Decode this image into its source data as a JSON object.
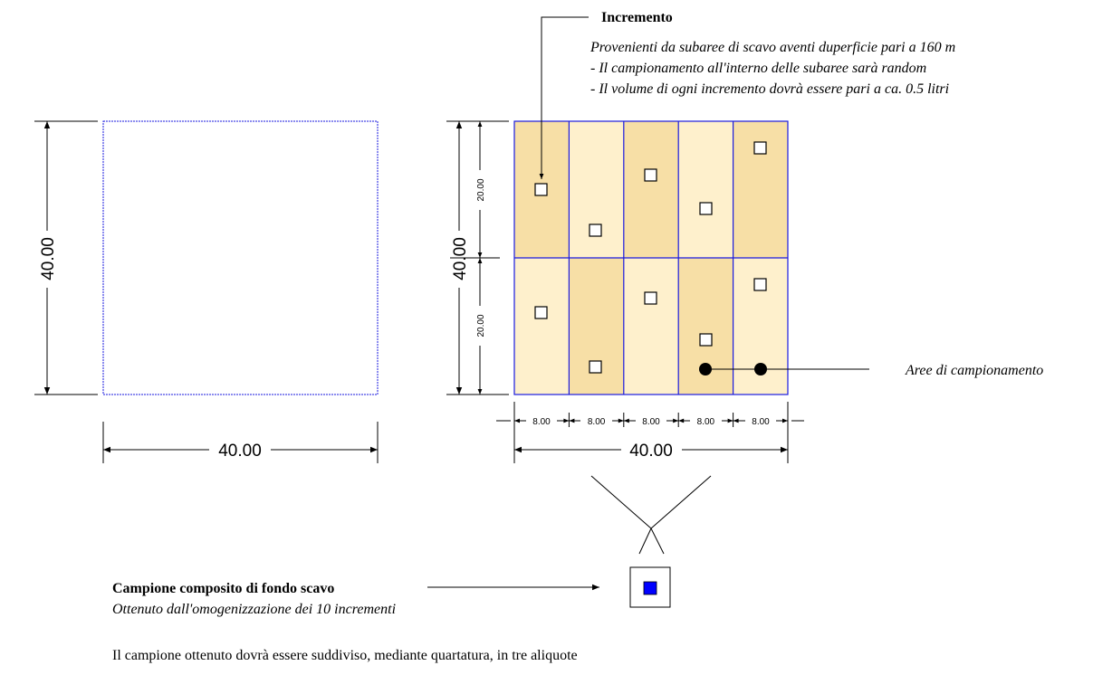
{
  "diagram": {
    "colors": {
      "outline_blue": "#1a1adf",
      "cell_light": "#fef0cc",
      "cell_dark": "#f7dfa6",
      "sample_fill": "#0000ff",
      "line": "#000000"
    },
    "left_square": {
      "width_label": "40.00",
      "height_label": "40.00"
    },
    "grid": {
      "total_width_label": "40.00",
      "total_height_label": "40.00",
      "half_height_labels": [
        "20.00",
        "20.00"
      ],
      "column_width_labels": [
        "8.00",
        "8.00",
        "8.00",
        "8.00",
        "8.00"
      ],
      "cell_shades_top": [
        "dark",
        "light",
        "dark",
        "light",
        "dark"
      ],
      "cell_shades_bottom": [
        "light",
        "dark",
        "light",
        "dark",
        "light"
      ],
      "increment_count": 10
    },
    "increment_callout": {
      "title": "Incremento",
      "lines": [
        "Provenienti da subaree di scavo aventi duperficie pari a 160 m",
        "- Il campionamento all'interno delle subaree sarà random",
        "- Il volume di ogni incremento dovrà essere pari a ca. 0.5 litri"
      ]
    },
    "sampling_areas_label": "Aree di campionamento",
    "composite": {
      "title": "Campione composito di fondo scavo",
      "subtitle": "Ottenuto dall'omogenizzazione dei 10 incrementi"
    },
    "footer_note": "Il campione ottenuto dovrà essere suddiviso, mediante quartatura, in tre aliquote"
  }
}
